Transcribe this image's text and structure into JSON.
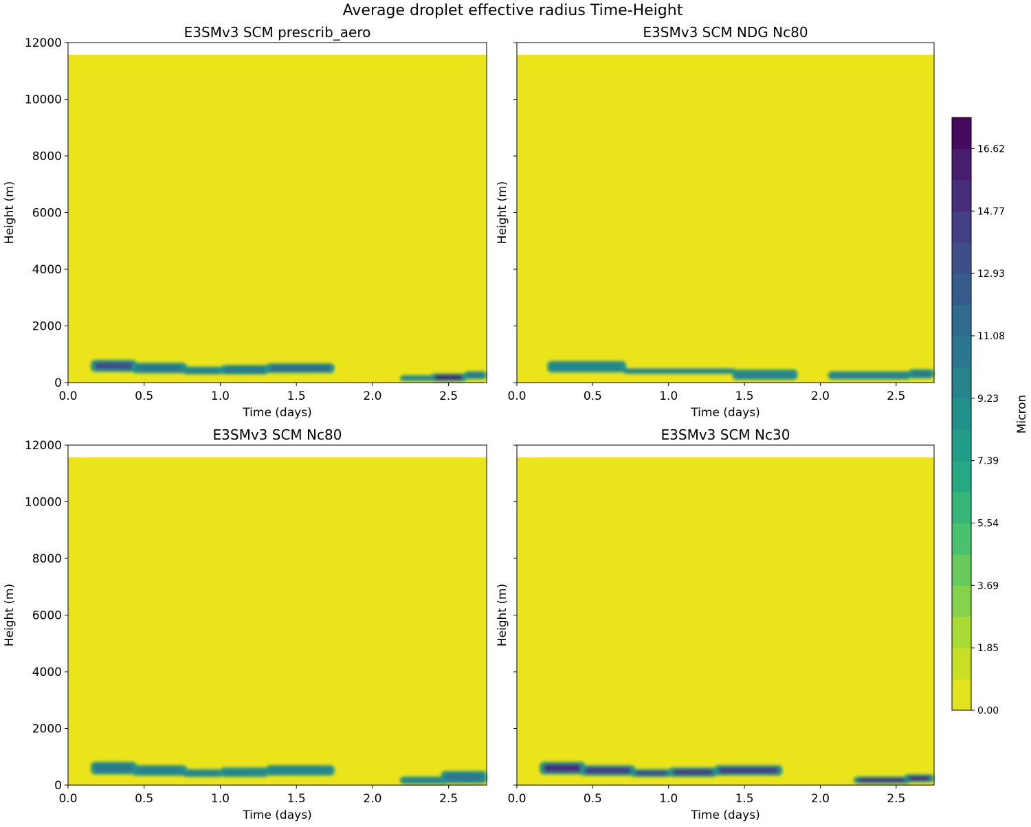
{
  "chart_data": {
    "type": "heatmap",
    "title": "Average droplet effective radius Time-Height",
    "xlim": [
      0,
      2.75
    ],
    "ylim": [
      0,
      12000
    ],
    "data_top_height": 11570,
    "xticks": [
      "0.0",
      "0.5",
      "1.0",
      "1.5",
      "2.0",
      "2.5"
    ],
    "xtick_values": [
      0,
      0.5,
      1.0,
      1.5,
      2.0,
      2.5
    ],
    "yticks": [
      "0",
      "2000",
      "4000",
      "6000",
      "8000",
      "10000",
      "12000"
    ],
    "ytick_values": [
      0,
      2000,
      4000,
      6000,
      8000,
      10000,
      12000
    ],
    "xlabel": "Time (days)",
    "ylabel": "Height (m)",
    "colorbar": {
      "label": "Micron",
      "levels_min": 0,
      "levels_step": 0.923,
      "n_levels": 19,
      "ticks": [
        "0.00",
        "1.85",
        "3.69",
        "5.54",
        "7.39",
        "9.23",
        "11.08",
        "12.93",
        "14.77",
        "16.62"
      ],
      "tick_values": [
        0,
        1.846,
        3.692,
        5.538,
        7.384,
        9.23,
        11.076,
        12.922,
        14.768,
        16.614
      ],
      "colormap": "viridis_r"
    },
    "panels": [
      {
        "title": "E3SMv3 SCM prescrib_aero",
        "background_value": 0,
        "cloud_layers": [
          {
            "t0": 0.15,
            "t1": 0.45,
            "z0": 380,
            "z1": 800,
            "v": 13.5
          },
          {
            "t0": 0.42,
            "t1": 0.78,
            "z0": 330,
            "z1": 700,
            "v": 11
          },
          {
            "t0": 0.75,
            "t1": 1.02,
            "z0": 290,
            "z1": 560,
            "v": 10
          },
          {
            "t0": 1.0,
            "t1": 1.32,
            "z0": 290,
            "z1": 620,
            "v": 10.5
          },
          {
            "t0": 1.3,
            "t1": 1.75,
            "z0": 340,
            "z1": 680,
            "v": 11.5
          },
          {
            "t0": 2.18,
            "t1": 2.45,
            "z0": 60,
            "z1": 260,
            "v": 10
          },
          {
            "t0": 2.38,
            "t1": 2.62,
            "z0": 40,
            "z1": 320,
            "v": 16
          },
          {
            "t0": 2.6,
            "t1": 2.75,
            "z0": 120,
            "z1": 400,
            "v": 11
          }
        ]
      },
      {
        "title": "E3SMv3 SCM NDG Nc80",
        "background_value": 0,
        "cloud_layers": [
          {
            "t0": 0.2,
            "t1": 0.72,
            "z0": 360,
            "z1": 760,
            "v": 9.5
          },
          {
            "t0": 0.7,
            "t1": 1.45,
            "z0": 310,
            "z1": 500,
            "v": 9.5
          },
          {
            "t0": 1.42,
            "t1": 1.85,
            "z0": 100,
            "z1": 460,
            "v": 9.5
          },
          {
            "t0": 2.05,
            "t1": 2.6,
            "z0": 110,
            "z1": 400,
            "v": 10
          },
          {
            "t0": 2.58,
            "t1": 2.75,
            "z0": 150,
            "z1": 470,
            "v": 11
          }
        ]
      },
      {
        "title": "E3SMv3 SCM Nc80",
        "background_value": 0,
        "cloud_layers": [
          {
            "t0": 0.15,
            "t1": 0.45,
            "z0": 380,
            "z1": 820,
            "v": 10.5
          },
          {
            "t0": 0.42,
            "t1": 0.78,
            "z0": 330,
            "z1": 700,
            "v": 10
          },
          {
            "t0": 0.75,
            "t1": 1.02,
            "z0": 290,
            "z1": 560,
            "v": 9.5
          },
          {
            "t0": 1.0,
            "t1": 1.32,
            "z0": 290,
            "z1": 620,
            "v": 10
          },
          {
            "t0": 1.3,
            "t1": 1.75,
            "z0": 340,
            "z1": 700,
            "v": 10
          },
          {
            "t0": 2.18,
            "t1": 2.5,
            "z0": 40,
            "z1": 300,
            "v": 9.5
          },
          {
            "t0": 2.45,
            "t1": 2.75,
            "z0": 60,
            "z1": 500,
            "v": 10.5
          }
        ]
      },
      {
        "title": "E3SMv3 SCM Nc30",
        "background_value": 0,
        "cloud_layers": [
          {
            "t0": 0.15,
            "t1": 0.45,
            "z0": 380,
            "z1": 820,
            "v": 15
          },
          {
            "t0": 0.42,
            "t1": 0.78,
            "z0": 330,
            "z1": 700,
            "v": 14
          },
          {
            "t0": 0.75,
            "t1": 1.02,
            "z0": 290,
            "z1": 560,
            "v": 13
          },
          {
            "t0": 1.0,
            "t1": 1.32,
            "z0": 290,
            "z1": 620,
            "v": 14
          },
          {
            "t0": 1.3,
            "t1": 1.75,
            "z0": 340,
            "z1": 700,
            "v": 14.5
          },
          {
            "t0": 2.22,
            "t1": 2.6,
            "z0": 50,
            "z1": 300,
            "v": 15
          },
          {
            "t0": 2.55,
            "t1": 2.75,
            "z0": 100,
            "z1": 380,
            "v": 15
          }
        ]
      }
    ]
  }
}
